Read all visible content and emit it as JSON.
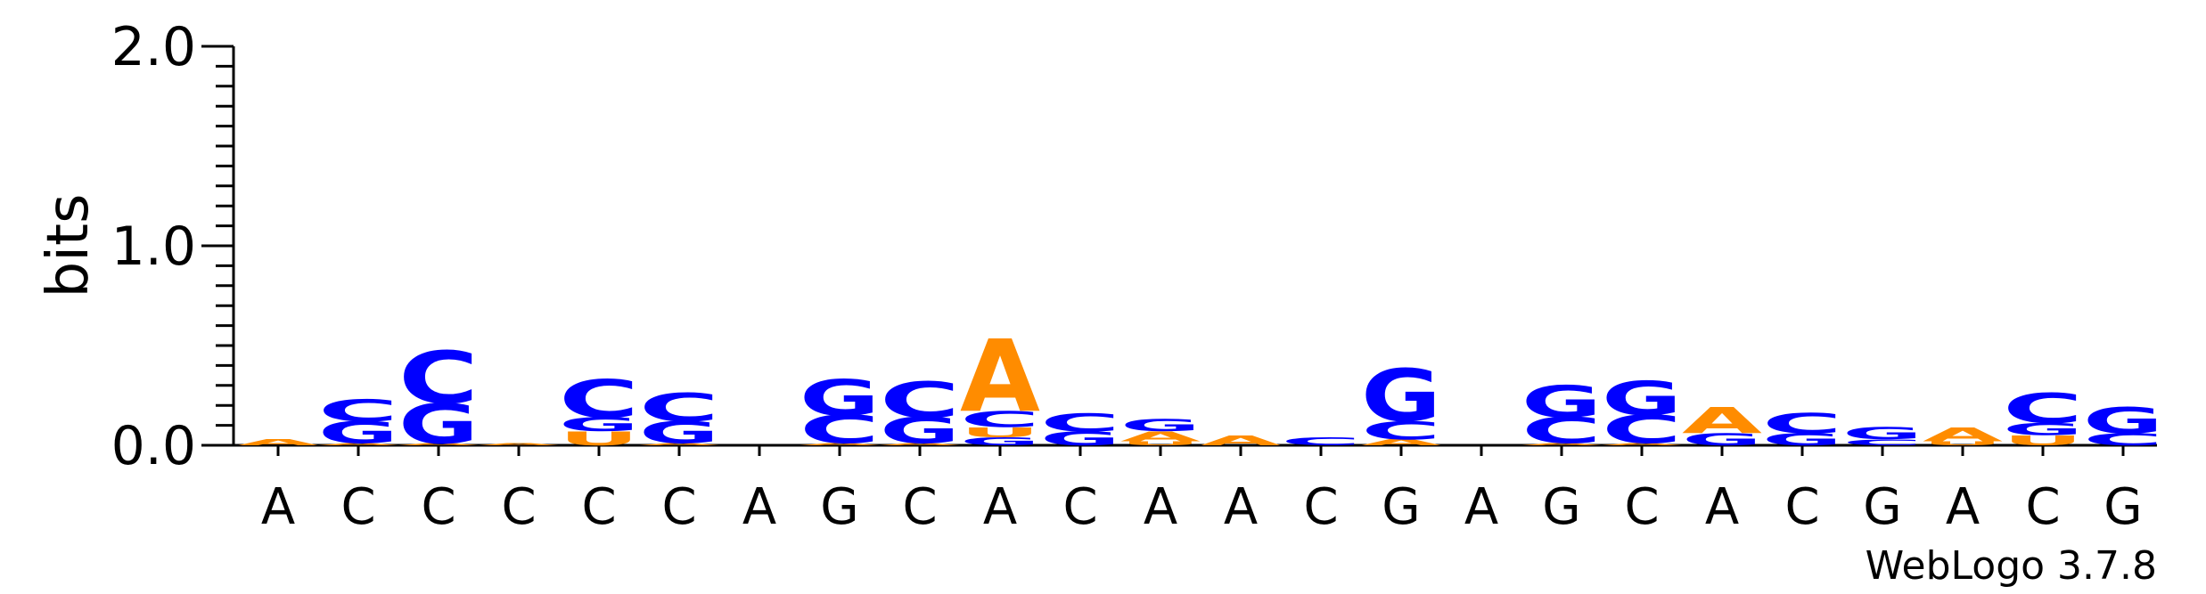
{
  "chart_data": {
    "type": "sequence-logo",
    "ylabel": "bits",
    "ylim": [
      0,
      2
    ],
    "y_ticks": [
      "0.0",
      "1.0",
      "2.0"
    ],
    "credit": "WebLogo 3.7.8",
    "x_labels": [
      "A",
      "C",
      "C",
      "C",
      "C",
      "C",
      "A",
      "G",
      "C",
      "A",
      "C",
      "A",
      "A",
      "C",
      "G",
      "A",
      "G",
      "C",
      "A",
      "C",
      "G",
      "A",
      "C",
      "G"
    ],
    "colors": {
      "A": "#ff8c00",
      "C": "#0000ff",
      "G": "#0000ff",
      "U": "#ff8c00"
    },
    "positions": [
      [
        [
          "A",
          0.03
        ]
      ],
      [
        [
          "A",
          0.01
        ],
        [
          "G",
          0.11
        ],
        [
          "C",
          0.11
        ]
      ],
      [
        [
          "A",
          0.01
        ],
        [
          "G",
          0.2
        ],
        [
          "C",
          0.26
        ]
      ],
      [
        [
          "A",
          0.01
        ]
      ],
      [
        [
          "U",
          0.07
        ],
        [
          "G",
          0.07
        ],
        [
          "C",
          0.19
        ]
      ],
      [
        [
          "A",
          0.01
        ],
        [
          "G",
          0.11
        ],
        [
          "C",
          0.14
        ]
      ],
      [],
      [
        [
          "A",
          0.01
        ],
        [
          "C",
          0.14
        ],
        [
          "G",
          0.18
        ]
      ],
      [
        [
          "A",
          0.01
        ],
        [
          "G",
          0.13
        ],
        [
          "C",
          0.18
        ]
      ],
      [
        [
          "G",
          0.04
        ],
        [
          "U",
          0.05
        ],
        [
          "C",
          0.08
        ],
        [
          "A",
          0.36
        ]
      ],
      [
        [
          "G",
          0.07
        ],
        [
          "C",
          0.09
        ]
      ],
      [
        [
          "U",
          0.02
        ],
        [
          "A",
          0.05
        ],
        [
          "G",
          0.06
        ]
      ],
      [
        [
          "A",
          0.05
        ]
      ],
      [
        [
          "C",
          0.04
        ]
      ],
      [
        [
          "A",
          0.03
        ],
        [
          "C",
          0.09
        ],
        [
          "G",
          0.26
        ]
      ],
      [],
      [
        [
          "A",
          0.01
        ],
        [
          "C",
          0.13
        ],
        [
          "G",
          0.16
        ]
      ],
      [
        [
          "A",
          0.01
        ],
        [
          "C",
          0.14
        ],
        [
          "G",
          0.17
        ]
      ],
      [
        [
          "G",
          0.06
        ],
        [
          "A",
          0.13
        ]
      ],
      [
        [
          "G",
          0.06
        ],
        [
          "C",
          0.1
        ]
      ],
      [
        [
          "C",
          0.03
        ],
        [
          "G",
          0.06
        ]
      ],
      [
        [
          "U",
          0.02
        ],
        [
          "A",
          0.07
        ]
      ],
      [
        [
          "U",
          0.05
        ],
        [
          "G",
          0.06
        ],
        [
          "C",
          0.15
        ]
      ],
      [
        [
          "C",
          0.06
        ],
        [
          "G",
          0.13
        ]
      ]
    ]
  }
}
